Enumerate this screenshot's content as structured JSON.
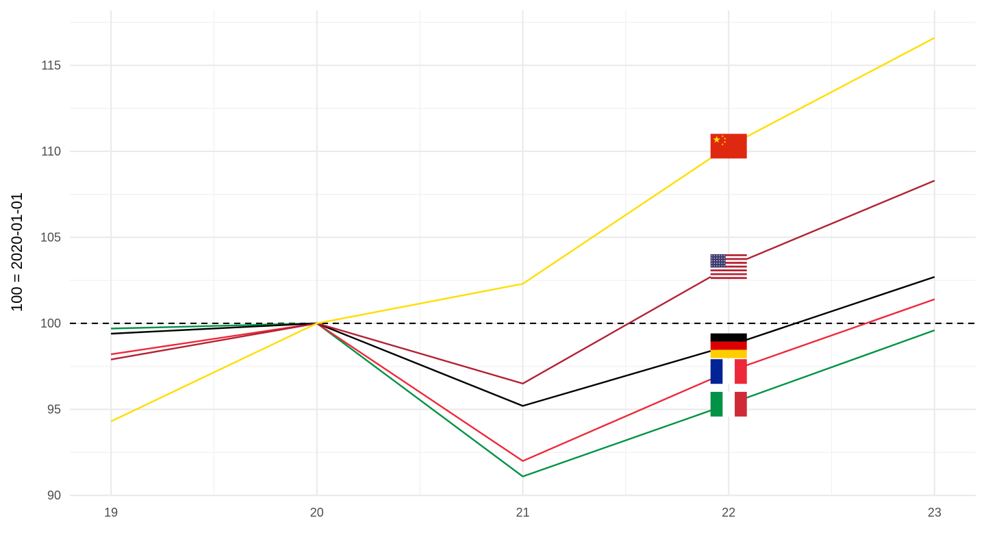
{
  "chart_data": {
    "type": "line",
    "title": "",
    "xlabel": "",
    "ylabel": "100 = 2020-01-01",
    "x": [
      19,
      20,
      21,
      22,
      23
    ],
    "x_tick_labels": [
      "19",
      "20",
      "21",
      "22",
      "23"
    ],
    "y_tick_labels": [
      "90",
      "95",
      "100",
      "105",
      "110",
      "115"
    ],
    "y_ticks": [
      90,
      95,
      100,
      105,
      110,
      115
    ],
    "xlim": [
      18.8,
      23.2
    ],
    "ylim": [
      90,
      118.2
    ],
    "grid": true,
    "legend": "flags placed on each line at x = 22",
    "reference_line": {
      "y": 100,
      "style": "dashed",
      "color": "#000000"
    },
    "series": [
      {
        "flag": "china",
        "color": "#FFDE00",
        "values": [
          94.3,
          100,
          102.3,
          110.3,
          116.6
        ]
      },
      {
        "flag": "united-states",
        "color": "#B22234",
        "values": [
          97.9,
          100,
          96.5,
          103.3,
          108.3
        ]
      },
      {
        "flag": "germany",
        "color": "#000000",
        "values": [
          99.4,
          100,
          95.2,
          98.7,
          102.7
        ]
      },
      {
        "flag": "france",
        "color": "#ED2939",
        "values": [
          98.2,
          100,
          92.0,
          97.2,
          101.4
        ]
      },
      {
        "flag": "italy",
        "color": "#009246",
        "values": [
          99.7,
          100,
          91.1,
          95.3,
          99.6
        ]
      }
    ]
  }
}
